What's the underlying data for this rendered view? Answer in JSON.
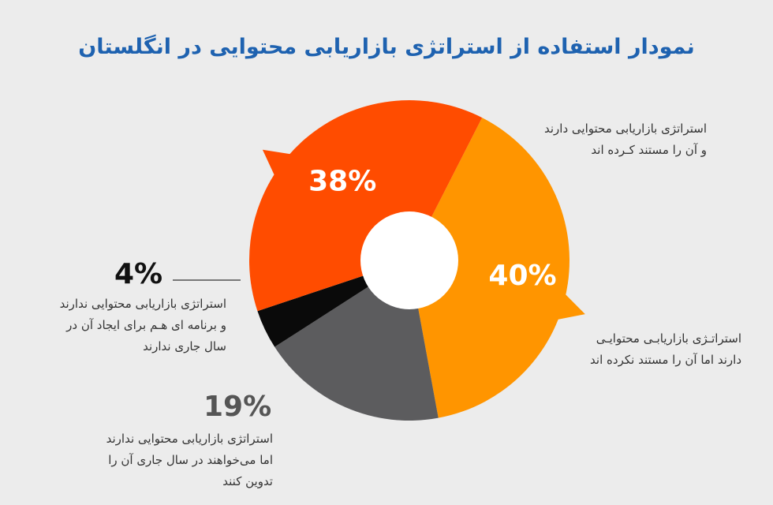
{
  "chart_data": {
    "type": "pie",
    "title": "نمودار استفاده از استراتژی بازاریابی محتوایی در انگلستان",
    "slices": [
      {
        "value": 40,
        "label": "40%",
        "color": "#ff9500",
        "description": [
          "استراتـژی بازاریابـی محتوایـی",
          "دارند اما آن را مستند نکرده اند"
        ]
      },
      {
        "value": 19,
        "label": "19%",
        "color": "#5c5c5e",
        "description": [
          "استراتژی بازاریابی محتوایی ندارند",
          "اما می‌خواهند در سال جاری آن را",
          "تدوین کنند"
        ]
      },
      {
        "value": 4,
        "label": "4%",
        "color": "#0a0a0a",
        "description": [
          "استراتژی بازاریابی محتوایی ندارند",
          "و برنامه ای هـم برای ایجاد آن در",
          "سال جاری ندارند"
        ]
      },
      {
        "value": 38,
        "label": "38%",
        "color": "#ff4c00",
        "description": [
          "استراتژی بازاریابی محتوایی دارند",
          "و آن را مستند کـرده اند"
        ]
      }
    ],
    "label_colors": {
      "outside_dark": "#111111",
      "outside_gray": "#555555"
    }
  }
}
